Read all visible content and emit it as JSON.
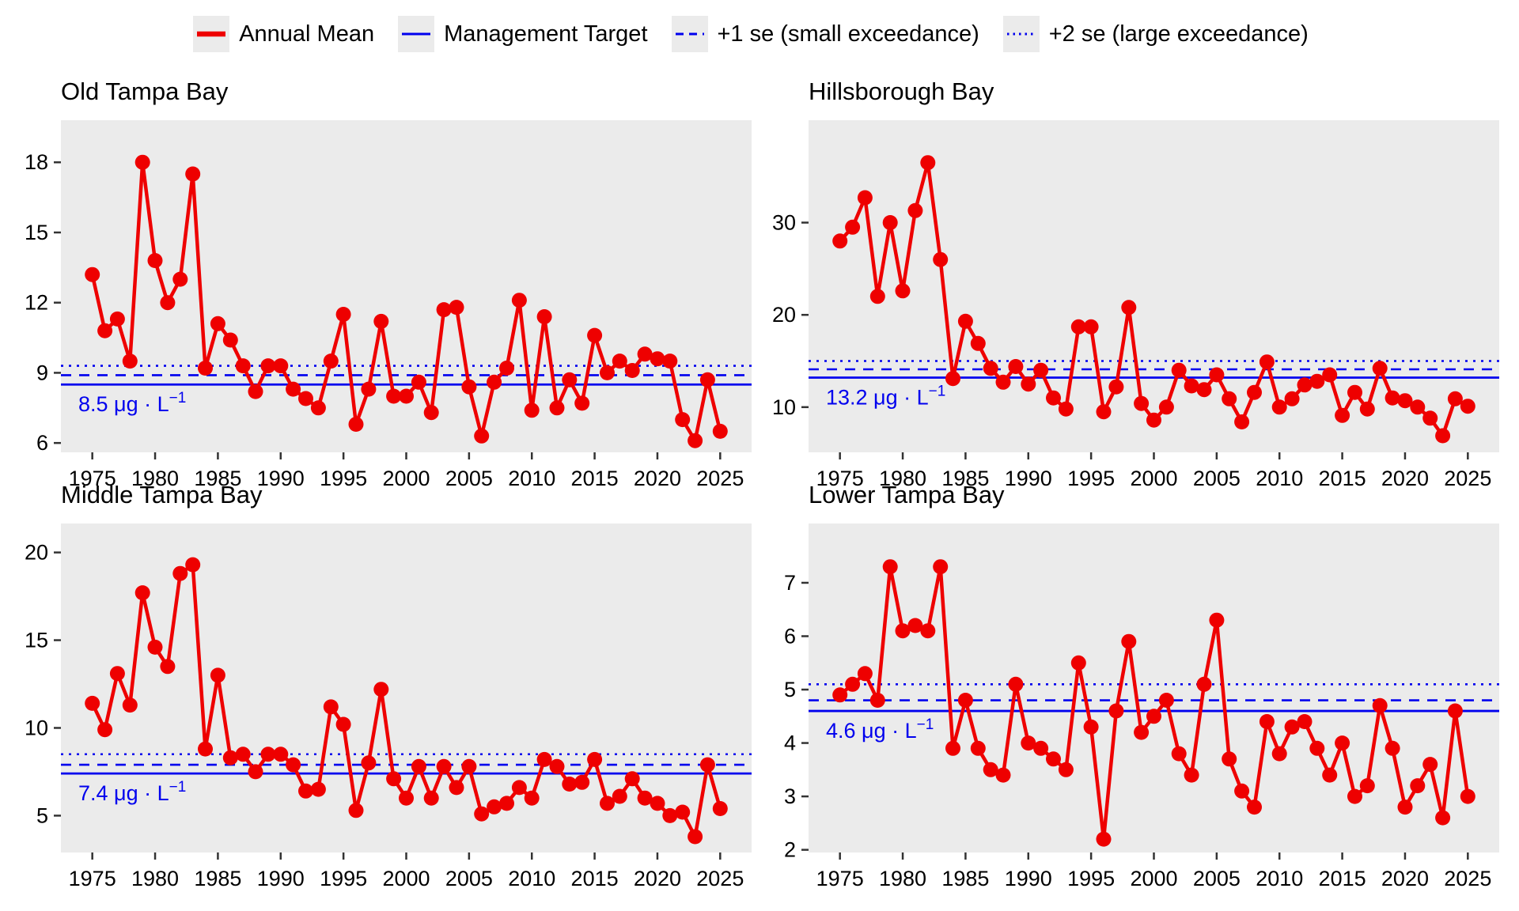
{
  "legend": {
    "items": [
      {
        "id": "annual-mean",
        "label": "Annual Mean",
        "line": "solid-thick",
        "color": "#ee0000"
      },
      {
        "id": "management-target",
        "label": "Management Target",
        "line": "solid",
        "color": "#0000ee"
      },
      {
        "id": "plus-1-se",
        "label": "+1 se (small exceedance)",
        "line": "dashed",
        "color": "#0000ee"
      },
      {
        "id": "plus-2-se",
        "label": "+2 se (large exceedance)",
        "line": "dotted",
        "color": "#0000ee"
      }
    ]
  },
  "colors": {
    "series_red": "#ee0000",
    "reference_blue": "#0000ee",
    "panel_background": "#ebebeb",
    "axis_text": "#000000",
    "tick_mark": "#333333"
  },
  "x_axis": {
    "range": [
      1972.5,
      2027.5
    ],
    "ticks": [
      1975,
      1980,
      1985,
      1990,
      1995,
      2000,
      2005,
      2010,
      2015,
      2020,
      2025
    ]
  },
  "unit": {
    "text": "μg · L",
    "exponent": "−1"
  },
  "chart_data": [
    {
      "type": "line",
      "title": "Old Tampa Bay",
      "target": 8.5,
      "plus1se": 8.9,
      "plus2se": 9.3,
      "target_label": "8.5",
      "ylim": [
        5.6,
        19.8
      ],
      "yticks": [
        6,
        9,
        12,
        15,
        18
      ],
      "year_start": 1975,
      "values": [
        13.2,
        10.8,
        11.3,
        9.5,
        18.0,
        13.8,
        12.0,
        13.0,
        17.5,
        9.2,
        11.1,
        10.4,
        9.3,
        8.2,
        9.3,
        9.3,
        8.3,
        7.9,
        7.5,
        9.5,
        11.5,
        6.8,
        8.3,
        11.2,
        8.0,
        8.0,
        8.6,
        7.3,
        11.7,
        11.8,
        8.4,
        6.3,
        8.6,
        9.2,
        12.1,
        7.4,
        11.4,
        7.5,
        8.7,
        7.7,
        10.6,
        9.0,
        9.5,
        9.1,
        9.8,
        9.6,
        9.5,
        7.0,
        6.1,
        8.7,
        6.5
      ]
    },
    {
      "type": "line",
      "title": "Hillsborough Bay",
      "target": 13.2,
      "plus1se": 14.1,
      "plus2se": 15.0,
      "target_label": "13.2",
      "ylim": [
        5.1,
        41.1
      ],
      "yticks": [
        10,
        20,
        30
      ],
      "year_start": 1975,
      "values": [
        28.0,
        29.5,
        32.7,
        22.0,
        30.0,
        22.6,
        31.3,
        36.5,
        26.0,
        13.1,
        19.3,
        16.9,
        14.2,
        12.7,
        14.4,
        12.5,
        14.0,
        11.0,
        9.8,
        18.7,
        18.7,
        9.5,
        12.2,
        20.8,
        10.4,
        8.6,
        10.0,
        14.0,
        12.3,
        11.9,
        13.5,
        10.9,
        8.4,
        11.6,
        14.9,
        10.0,
        10.9,
        12.4,
        12.8,
        13.5,
        9.1,
        11.6,
        9.8,
        14.2,
        11.0,
        10.7,
        10.0,
        8.8,
        6.9,
        10.9,
        10.1
      ]
    },
    {
      "type": "line",
      "title": "Middle Tampa Bay",
      "target": 7.4,
      "plus1se": 7.9,
      "plus2se": 8.5,
      "target_label": "7.4",
      "ylim": [
        2.9,
        21.65
      ],
      "yticks": [
        5,
        10,
        15,
        20
      ],
      "year_start": 1975,
      "values": [
        11.4,
        9.9,
        13.1,
        11.3,
        17.7,
        14.6,
        13.5,
        18.8,
        19.3,
        8.8,
        13.0,
        8.3,
        8.5,
        7.5,
        8.5,
        8.5,
        7.9,
        6.4,
        6.5,
        11.2,
        10.2,
        5.3,
        8.0,
        12.2,
        7.1,
        6.0,
        7.8,
        6.0,
        7.8,
        6.6,
        7.8,
        5.1,
        5.5,
        5.7,
        6.6,
        6.0,
        8.2,
        7.8,
        6.8,
        6.9,
        8.2,
        5.7,
        6.1,
        7.1,
        6.0,
        5.7,
        5.0,
        5.2,
        3.8,
        7.9,
        5.4
      ]
    },
    {
      "type": "line",
      "title": "Lower Tampa Bay",
      "target": 4.6,
      "plus1se": 4.8,
      "plus2se": 5.1,
      "target_label": "4.6",
      "ylim": [
        1.95,
        8.11
      ],
      "yticks": [
        2,
        3,
        4,
        5,
        6,
        7
      ],
      "year_start": 1975,
      "values": [
        4.9,
        5.1,
        5.3,
        4.8,
        7.3,
        6.1,
        6.2,
        6.1,
        7.3,
        3.9,
        4.8,
        3.9,
        3.5,
        3.4,
        5.1,
        4.0,
        3.9,
        3.7,
        3.5,
        5.5,
        4.3,
        2.2,
        4.6,
        5.9,
        4.2,
        4.5,
        4.8,
        3.8,
        3.4,
        5.1,
        6.3,
        3.7,
        3.1,
        2.8,
        4.4,
        3.8,
        4.3,
        4.4,
        3.9,
        3.4,
        4.0,
        3.0,
        3.2,
        4.7,
        3.9,
        2.8,
        3.2,
        3.6,
        2.6,
        4.6,
        3.0
      ]
    }
  ]
}
